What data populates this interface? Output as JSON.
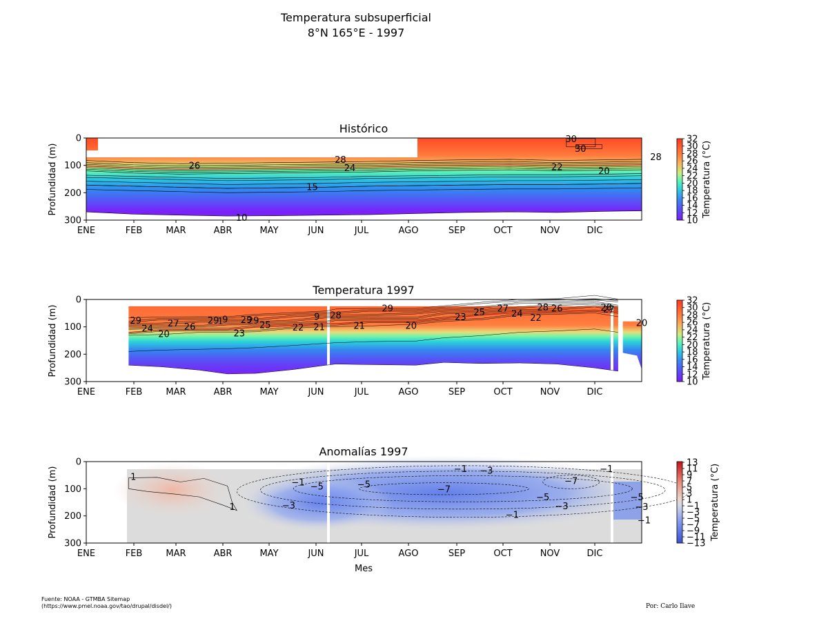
{
  "title_line1": "Temperatura subsuperficial",
  "title_line2": "8°N 165°E - 1997",
  "source_line1": "Fuente: NOAA - GTMBA Sitemap",
  "source_line2": "(https://www.pmel.noaa.gov/tao/drupal/disdel/)",
  "credit": "Por: Carlo Ilave",
  "chart_data": [
    {
      "type": "heatmap",
      "title": "Histórico",
      "ylabel": "Profundidad (m)",
      "xlabel": "",
      "x_ticks": [
        "ENE",
        "FEB",
        "MAR",
        "ABR",
        "MAY",
        "JUN",
        "JUL",
        "AGO",
        "SEP",
        "OCT",
        "NOV",
        "DIC"
      ],
      "ylim": [
        300,
        0
      ],
      "y_ticks": [
        0,
        100,
        200,
        300
      ],
      "colorbar": {
        "label": "Temperatura (°C)",
        "ticks": [
          32,
          30,
          28,
          26,
          24,
          22,
          20,
          18,
          16,
          14,
          12,
          10
        ],
        "range": [
          10,
          32
        ]
      },
      "contour_levels_labeled": [
        {
          "label": "26",
          "month": 2.3,
          "depth": 100
        },
        {
          "label": "28",
          "month": 5.4,
          "depth": 78
        },
        {
          "label": "24",
          "month": 5.6,
          "depth": 108
        },
        {
          "label": "15",
          "month": 4.8,
          "depth": 178
        },
        {
          "label": "10",
          "month": 3.3,
          "depth": 290
        },
        {
          "label": "22",
          "month": 10.0,
          "depth": 105
        },
        {
          "label": "20",
          "month": 11.0,
          "depth": 120
        },
        {
          "label": "28",
          "month": 12.1,
          "depth": 68
        },
        {
          "label": "30",
          "month": 10.3,
          "depth": 3
        },
        {
          "label": "30",
          "month": 10.5,
          "depth": 38
        }
      ],
      "thermocline_depth_m": {
        "months": [
          0,
          1,
          2,
          3,
          4,
          5,
          6,
          7,
          8,
          9,
          10,
          11,
          11.8
        ],
        "d20": [
          120,
          128,
          132,
          130,
          128,
          126,
          124,
          120,
          118,
          116,
          120,
          118,
          116
        ],
        "d15": [
          172,
          176,
          180,
          184,
          182,
          180,
          176,
          174,
          172,
          170,
          170,
          168,
          166
        ],
        "d10": [
          270,
          278,
          282,
          285,
          284,
          282,
          280,
          276,
          272,
          270,
          272,
          268,
          266
        ]
      }
    },
    {
      "type": "heatmap",
      "title": "Temperatura 1997",
      "ylabel": "Profundidad (m)",
      "xlabel": "",
      "x_ticks": [
        "ENE",
        "FEB",
        "MAR",
        "ABR",
        "MAY",
        "JUN",
        "JUL",
        "AGO",
        "SEP",
        "OCT",
        "NOV",
        "DIC"
      ],
      "ylim": [
        300,
        0
      ],
      "y_ticks": [
        0,
        100,
        200,
        300
      ],
      "colorbar": {
        "label": "Temperatura (°C)",
        "ticks": [
          32,
          30,
          28,
          26,
          24,
          22,
          20,
          18,
          16,
          14,
          12,
          10
        ],
        "range": [
          10,
          32
        ]
      },
      "contour_levels_labeled": [
        {
          "label": "29",
          "month": 1.05,
          "depth": 75
        },
        {
          "label": "24",
          "month": 1.3,
          "depth": 104
        },
        {
          "label": "27",
          "month": 1.85,
          "depth": 86
        },
        {
          "label": "26",
          "month": 2.2,
          "depth": 98
        },
        {
          "label": "20",
          "month": 1.65,
          "depth": 125
        },
        {
          "label": "29",
          "month": 2.7,
          "depth": 75
        },
        {
          "label": "1",
          "month": 2.85,
          "depth": 78
        },
        {
          "label": "9",
          "month": 2.95,
          "depth": 72
        },
        {
          "label": "29",
          "month": 3.4,
          "depth": 73
        },
        {
          "label": "29",
          "month": 3.55,
          "depth": 76
        },
        {
          "label": "23",
          "month": 3.25,
          "depth": 122
        },
        {
          "label": "25",
          "month": 3.8,
          "depth": 92
        },
        {
          "label": "22",
          "month": 4.5,
          "depth": 101
        },
        {
          "label": "9",
          "month": 4.9,
          "depth": 62
        },
        {
          "label": "21",
          "month": 4.95,
          "depth": 100
        },
        {
          "label": "28",
          "month": 5.3,
          "depth": 57
        },
        {
          "label": "21",
          "month": 5.8,
          "depth": 95
        },
        {
          "label": "29",
          "month": 6.4,
          "depth": 32
        },
        {
          "label": "20",
          "month": 6.9,
          "depth": 95
        },
        {
          "label": "23",
          "month": 7.95,
          "depth": 63
        },
        {
          "label": "25",
          "month": 8.35,
          "depth": 46
        },
        {
          "label": "27",
          "month": 8.85,
          "depth": 31
        },
        {
          "label": "24",
          "month": 9.15,
          "depth": 51
        },
        {
          "label": "22",
          "month": 9.55,
          "depth": 65
        },
        {
          "label": "28",
          "month": 9.7,
          "depth": 28
        },
        {
          "label": "26",
          "month": 10.0,
          "depth": 32
        },
        {
          "label": "28",
          "month": 11.05,
          "depth": 28
        },
        {
          "label": "27",
          "month": 11.1,
          "depth": 35
        },
        {
          "label": "20",
          "month": 11.8,
          "depth": 85
        }
      ],
      "data_gaps_month": [
        5.15,
        11.35
      ],
      "data_start_month": 0.9
    },
    {
      "type": "heatmap",
      "title": "Anomalías 1997",
      "ylabel": "Profundidad (m)",
      "xlabel": "Mes",
      "x_ticks": [
        "ENE",
        "FEB",
        "MAR",
        "ABR",
        "MAY",
        "JUN",
        "JUL",
        "AGO",
        "SEP",
        "OCT",
        "NOV",
        "DIC"
      ],
      "ylim": [
        300,
        0
      ],
      "y_ticks": [
        0,
        100,
        200,
        300
      ],
      "colorbar": {
        "label": "Temperatura (°C)",
        "ticks": [
          13,
          11,
          9,
          7,
          5,
          3,
          1,
          -1,
          -3,
          -5,
          -7,
          -9,
          -11,
          -13
        ],
        "range": [
          -13,
          13
        ]
      },
      "contour_levels_labeled": [
        {
          "label": "1",
          "month": 1.0,
          "depth": 55
        },
        {
          "label": "1",
          "month": 3.1,
          "depth": 165
        },
        {
          "label": "−1",
          "month": 4.5,
          "depth": 75
        },
        {
          "label": "−5",
          "month": 4.9,
          "depth": 90
        },
        {
          "label": "−3",
          "month": 4.3,
          "depth": 160
        },
        {
          "label": "−5",
          "month": 5.9,
          "depth": 82
        },
        {
          "label": "−1",
          "month": 7.95,
          "depth": 25
        },
        {
          "label": "−3",
          "month": 8.5,
          "depth": 32
        },
        {
          "label": "−7",
          "month": 7.6,
          "depth": 100
        },
        {
          "label": "−7",
          "month": 10.3,
          "depth": 70
        },
        {
          "label": "−5",
          "month": 9.7,
          "depth": 130
        },
        {
          "label": "−3",
          "month": 10.1,
          "depth": 163
        },
        {
          "label": "−1",
          "month": 9.05,
          "depth": 195
        },
        {
          "label": "−1",
          "month": 11.05,
          "depth": 25
        },
        {
          "label": "−5",
          "month": 11.7,
          "depth": 130
        },
        {
          "label": "−3",
          "month": 11.8,
          "depth": 165
        },
        {
          "label": "−1",
          "month": 11.85,
          "depth": 215
        }
      ],
      "data_gaps_month": [
        5.15,
        11.35
      ],
      "data_start_month": 0.9
    }
  ]
}
